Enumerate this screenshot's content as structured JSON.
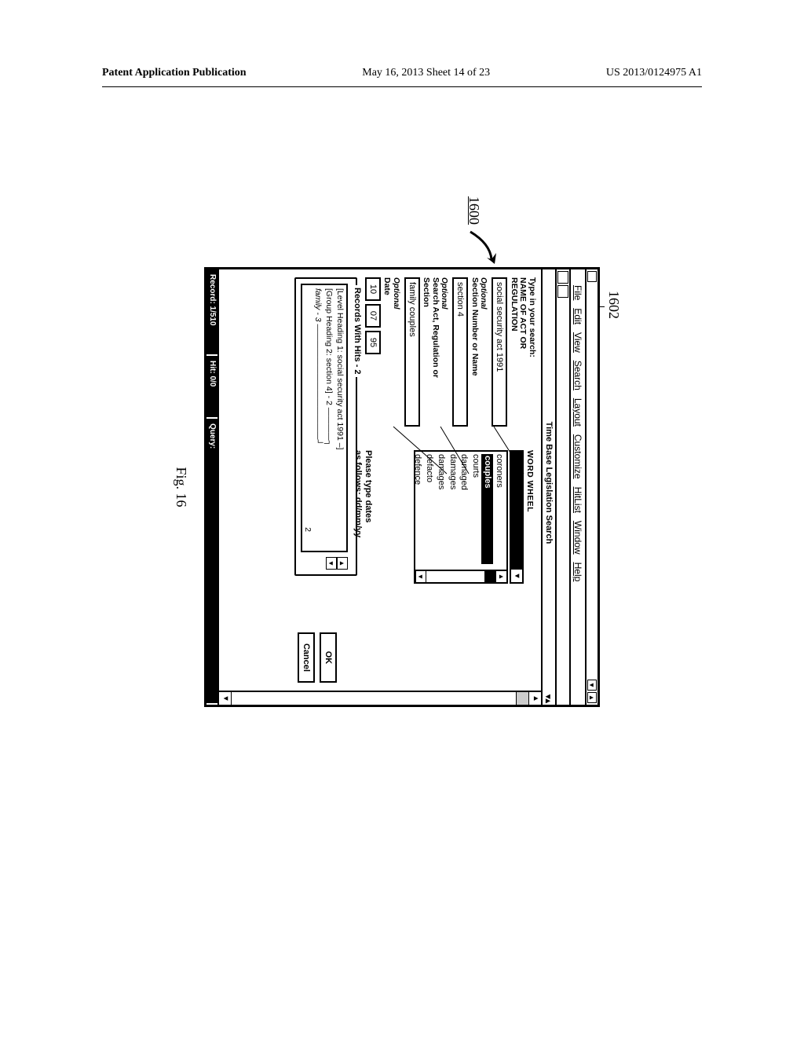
{
  "page_header": {
    "left": "Patent Application Publication",
    "center": "May 16, 2013  Sheet 14 of 23",
    "right": "US 2013/0124975 A1"
  },
  "figure": {
    "caption": "Fig. 16",
    "ref_1600": "1600",
    "ref_1602": "1602"
  },
  "menus": {
    "file": "File",
    "edit": "Edit",
    "view": "View",
    "search": "Search",
    "layout": "Layout",
    "customize": "Customize",
    "hitlist": "HitList",
    "window": "Window",
    "help": "Help"
  },
  "doc_title": "Time Base Legislation Search",
  "form": {
    "type_in_label": "Type in your search:",
    "name_act_label_1": "NAME OF ACT OR",
    "name_act_label_2": "REGULATION",
    "name_act_value": "social security act 1991",
    "section_optional": "Optional",
    "section_label": "Section Number or Name",
    "section_value": "section 4",
    "search_act_optional": "Optional",
    "search_act_label_1": "Search Act, Regulation or",
    "search_act_label_2": "Section",
    "search_act_value": "family couples",
    "date_optional": "Optional",
    "date_label": "Date",
    "date_dd": "10",
    "date_mm": "07",
    "date_yy": "95"
  },
  "wordwheel": {
    "label": "WORD WHEEL",
    "items": [
      "coroners",
      "couples",
      "courts",
      "damaged",
      "damages",
      "damages",
      "defacto",
      "defence"
    ],
    "selected_index": 1
  },
  "date_hint": {
    "line1": "Please type dates",
    "line2": "as follows: dd/mm/yy"
  },
  "buttons": {
    "ok": "OK",
    "cancel": "Cancel"
  },
  "records": {
    "legend": "Records With Hits - 2",
    "lines": [
      "[Level Heading 1: social security act 1991 –]",
      "[Group Heading 2: section 4] - 2 ————┐",
      "family - 3 ——————————————┘",
      ""
    ],
    "side_value": "2"
  },
  "statusbar": {
    "record": "Record: 1/510",
    "hit": "Hit: 0/0",
    "query": "Query:"
  },
  "colors": {
    "fg": "#000000",
    "bg": "#ffffff"
  }
}
